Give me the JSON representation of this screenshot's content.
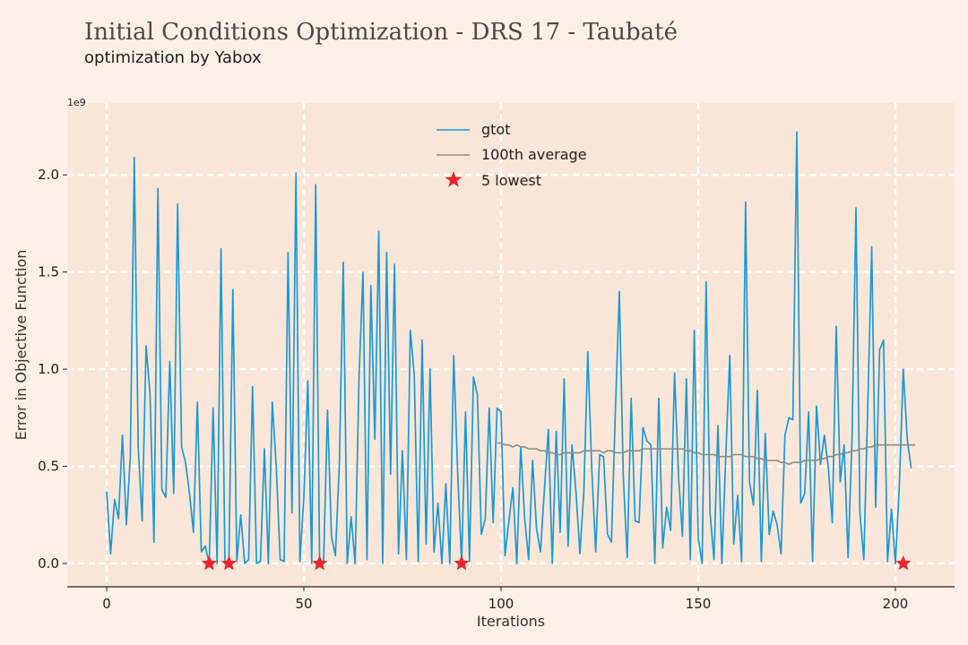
{
  "header": {
    "title": "Initial Conditions Optimization - DRS 17 - Taubaté",
    "subtitle": "optimization by Yabox"
  },
  "chart_data": {
    "type": "line",
    "title": "Initial Conditions Optimization - DRS 17 - Taubaté",
    "subtitle": "optimization by Yabox",
    "xlabel": "Iterations",
    "ylabel": "Error in Objective Function",
    "y_exponent_label": "1e9",
    "xlim": [
      -10,
      215
    ],
    "ylim": [
      -0.12,
      2.37
    ],
    "x_ticks": [
      0,
      50,
      100,
      150,
      200
    ],
    "y_ticks": [
      0.0,
      0.5,
      1.0,
      1.5,
      2.0
    ],
    "y_tick_labels": [
      "0.0",
      "0.5",
      "1.0",
      "1.5",
      "2.0"
    ],
    "grid": true,
    "legend_position": "top-center",
    "colors": {
      "gtot": "#1a9ad6",
      "average": "#8c8c8c",
      "lowest": "#e8262c",
      "background": "#fae6d8",
      "page": "#fdf0e6"
    },
    "series": [
      {
        "name": "gtot",
        "x_start": 0,
        "values": [
          0.37,
          0.05,
          0.33,
          0.23,
          0.66,
          0.2,
          0.55,
          2.09,
          0.6,
          0.22,
          1.12,
          0.87,
          0.11,
          1.93,
          0.38,
          0.34,
          1.04,
          0.36,
          1.85,
          0.6,
          0.52,
          0.36,
          0.16,
          0.83,
          0.06,
          0.09,
          0.0,
          0.8,
          0.0,
          1.62,
          0.0,
          0.02,
          1.41,
          0.01,
          0.25,
          0.0,
          0.02,
          0.91,
          0.0,
          0.01,
          0.59,
          0.0,
          0.83,
          0.5,
          0.02,
          0.01,
          1.6,
          0.26,
          2.01,
          0.01,
          0.34,
          0.94,
          0.0,
          1.95,
          0.0,
          0.0,
          0.79,
          0.14,
          0.04,
          0.51,
          1.55,
          0.0,
          0.24,
          0.0,
          0.96,
          1.5,
          0.02,
          1.43,
          0.64,
          1.71,
          0.0,
          1.6,
          0.46,
          1.54,
          0.05,
          0.58,
          0.02,
          1.2,
          0.97,
          0.01,
          1.15,
          0.1,
          1.0,
          0.06,
          0.31,
          0.0,
          0.41,
          0.0,
          1.07,
          0.47,
          0.0,
          0.78,
          0.01,
          0.96,
          0.87,
          0.15,
          0.23,
          0.8,
          0.21,
          0.8,
          0.78,
          0.04,
          0.22,
          0.39,
          0.0,
          0.6,
          0.23,
          0.02,
          0.53,
          0.18,
          0.06,
          0.38,
          0.69,
          0.0,
          0.68,
          0.16,
          0.95,
          0.09,
          0.61,
          0.37,
          0.05,
          0.37,
          1.09,
          0.49,
          0.06,
          0.56,
          0.55,
          0.15,
          0.11,
          0.79,
          1.4,
          0.45,
          0.03,
          0.85,
          0.22,
          0.21,
          0.7,
          0.63,
          0.61,
          0.0,
          0.85,
          0.08,
          0.29,
          0.17,
          0.98,
          0.45,
          0.14,
          0.95,
          0.02,
          1.2,
          0.13,
          0.0,
          1.45,
          0.26,
          0.02,
          0.71,
          0.0,
          0.56,
          1.07,
          0.1,
          0.35,
          0.01,
          1.86,
          0.42,
          0.3,
          0.89,
          0.01,
          0.67,
          0.15,
          0.27,
          0.2,
          0.05,
          0.66,
          0.75,
          0.74,
          2.22,
          0.31,
          0.36,
          0.78,
          0.01,
          0.81,
          0.51,
          0.66,
          0.49,
          0.21,
          1.22,
          0.42,
          0.61,
          0.03,
          0.64,
          1.83,
          0.26,
          0.02,
          0.82,
          1.63,
          0.29,
          1.1,
          1.15,
          0.01,
          0.28,
          0.0,
          0.4,
          1.0,
          0.64,
          0.49
        ],
        "style": "line"
      },
      {
        "name": "100th average",
        "x_start": 99,
        "values": [
          0.62,
          0.62,
          0.61,
          0.61,
          0.6,
          0.61,
          0.6,
          0.6,
          0.59,
          0.59,
          0.59,
          0.58,
          0.58,
          0.57,
          0.57,
          0.56,
          0.56,
          0.57,
          0.57,
          0.57,
          0.57,
          0.57,
          0.58,
          0.58,
          0.58,
          0.58,
          0.58,
          0.57,
          0.58,
          0.58,
          0.57,
          0.57,
          0.57,
          0.58,
          0.58,
          0.58,
          0.58,
          0.59,
          0.59,
          0.59,
          0.59,
          0.59,
          0.59,
          0.59,
          0.59,
          0.59,
          0.59,
          0.59,
          0.58,
          0.58,
          0.57,
          0.57,
          0.56,
          0.56,
          0.56,
          0.56,
          0.55,
          0.55,
          0.55,
          0.55,
          0.56,
          0.56,
          0.56,
          0.55,
          0.55,
          0.55,
          0.54,
          0.54,
          0.53,
          0.53,
          0.53,
          0.53,
          0.52,
          0.52,
          0.51,
          0.52,
          0.52,
          0.52,
          0.53,
          0.53,
          0.53,
          0.53,
          0.54,
          0.54,
          0.55,
          0.55,
          0.56,
          0.56,
          0.57,
          0.57,
          0.58,
          0.58,
          0.59,
          0.59,
          0.6,
          0.6,
          0.61,
          0.61,
          0.61,
          0.61,
          0.61,
          0.61,
          0.61,
          0.61,
          0.61,
          0.61,
          0.61
        ],
        "style": "line"
      },
      {
        "name": "5 lowest",
        "x": [
          26,
          31,
          54,
          90,
          202
        ],
        "y": [
          0.0,
          0.0,
          0.0,
          0.0,
          0.0
        ],
        "style": "marker-star"
      }
    ]
  }
}
